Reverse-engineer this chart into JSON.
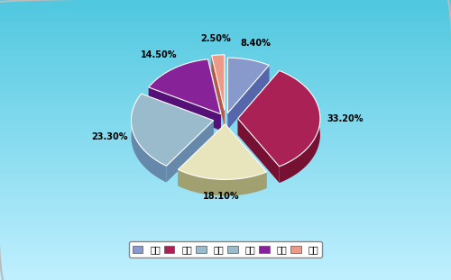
{
  "labels": [
    "品牌",
    "价格",
    "技术",
    "质量",
    "性能",
    "其他"
  ],
  "values": [
    8.4,
    33.2,
    18.1,
    23.3,
    14.5,
    2.5
  ],
  "colors_top": [
    "#8899CC",
    "#AA2255",
    "#E8E4BB",
    "#99BBCC",
    "#882299",
    "#EE9988"
  ],
  "colors_side": [
    "#5566AA",
    "#771133",
    "#A0A070",
    "#6688AA",
    "#551177",
    "#BB5544"
  ],
  "startangle": 90,
  "explode": [
    0.04,
    0.06,
    0.04,
    0.06,
    0.04,
    0.06
  ],
  "legend_labels": [
    "品牌",
    "价格",
    "技术",
    "质量",
    "性能",
    "其他"
  ],
  "legend_colors": [
    "#8899CC",
    "#AA2255",
    "#99BBCC",
    "#99BBCC",
    "#882299",
    "#EE9988"
  ],
  "figsize": [
    5.0,
    3.11
  ],
  "dpi": 100
}
